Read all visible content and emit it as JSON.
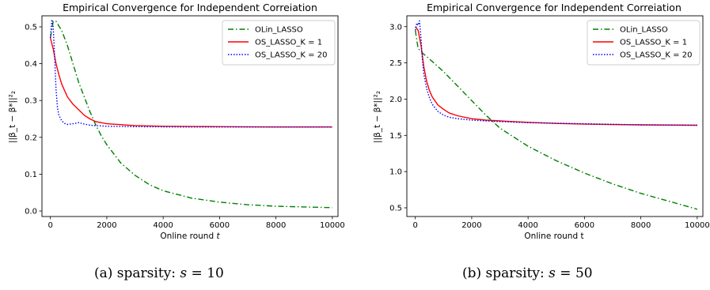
{
  "chart_data": [
    {
      "type": "line",
      "title": "Empirical Convergence for Independent Correiation",
      "xlabel": "Online round ",
      "xlabel_var": "t",
      "ylabel": "||β_t − β*||²₂",
      "xlim": [
        -300,
        10200
      ],
      "ylim": [
        -0.015,
        0.53
      ],
      "xticks": [
        0,
        2000,
        4000,
        6000,
        8000,
        10000
      ],
      "xtick_labels": [
        "0",
        "2000",
        "4000",
        "6000",
        "8000",
        "10000"
      ],
      "yticks": [
        0.0,
        0.1,
        0.2,
        0.3,
        0.4,
        0.5
      ],
      "ytick_labels": [
        "0.0",
        "0.1",
        "0.2",
        "0.3",
        "0.4",
        "0.5"
      ],
      "grid": false,
      "legend_position": "top-right",
      "caption": {
        "prefix": "(a)  sparsity: ",
        "var": "s",
        "suffix": " = 10"
      },
      "series": [
        {
          "name": "OLin_LASSO",
          "color": "#008000",
          "style": "dashdot",
          "x": [
            0,
            100,
            200,
            400,
            600,
            800,
            1000,
            1200,
            1400,
            1600,
            1800,
            2000,
            2500,
            3000,
            3500,
            4000,
            5000,
            6000,
            7000,
            8000,
            9000,
            10000
          ],
          "y": [
            0.47,
            0.515,
            0.515,
            0.49,
            0.45,
            0.4,
            0.35,
            0.31,
            0.27,
            0.235,
            0.205,
            0.18,
            0.13,
            0.097,
            0.072,
            0.055,
            0.035,
            0.024,
            0.017,
            0.013,
            0.011,
            0.009
          ]
        },
        {
          "name": "OS_LASSO_K = 1",
          "color": "#ff0000",
          "style": "solid",
          "x": [
            0,
            100,
            200,
            300,
            400,
            600,
            800,
            1000,
            1200,
            1400,
            1600,
            2000,
            3000,
            4000,
            6000,
            8000,
            10000
          ],
          "y": [
            0.47,
            0.44,
            0.4,
            0.37,
            0.345,
            0.31,
            0.29,
            0.275,
            0.26,
            0.25,
            0.243,
            0.237,
            0.232,
            0.23,
            0.229,
            0.228,
            0.228
          ]
        },
        {
          "name": "OS_LASSO_K = 20",
          "color": "#0000ff",
          "style": "dotted",
          "x": [
            0,
            50,
            100,
            150,
            200,
            250,
            300,
            400,
            500,
            600,
            800,
            1000,
            1200,
            1400,
            1600,
            2000,
            3000,
            5000,
            10000
          ],
          "y": [
            0.47,
            0.52,
            0.5,
            0.42,
            0.33,
            0.28,
            0.26,
            0.245,
            0.238,
            0.235,
            0.237,
            0.24,
            0.236,
            0.233,
            0.232,
            0.23,
            0.229,
            0.228,
            0.228
          ]
        }
      ]
    },
    {
      "type": "line",
      "title": "Empirical Convergence for Independent Correiation",
      "xlabel": "Online round t",
      "ylabel": "||β_t − β*||²₂",
      "xlim": [
        -300,
        10200
      ],
      "ylim": [
        0.38,
        3.15
      ],
      "xticks": [
        0,
        2000,
        4000,
        6000,
        8000,
        10000
      ],
      "xtick_labels": [
        "0",
        "2000",
        "4000",
        "6000",
        "8000",
        "10000"
      ],
      "yticks": [
        0.5,
        1.0,
        1.5,
        2.0,
        2.5,
        3.0
      ],
      "ytick_labels": [
        "0.5",
        "1.0",
        "1.5",
        "2.0",
        "2.5",
        "3.0"
      ],
      "grid": false,
      "legend_position": "top-right",
      "caption": {
        "prefix": "(b)  sparsity: ",
        "var": "s",
        "suffix": " = 50"
      },
      "series": [
        {
          "name": "OLin_LASSO",
          "color": "#008000",
          "style": "dashdot",
          "x": [
            0,
            100,
            300,
            600,
            1000,
            1500,
            2000,
            2500,
            3000,
            4000,
            5000,
            6000,
            7000,
            8000,
            9000,
            10000
          ],
          "y": [
            2.95,
            2.7,
            2.62,
            2.52,
            2.38,
            2.18,
            1.98,
            1.78,
            1.6,
            1.35,
            1.15,
            0.98,
            0.83,
            0.7,
            0.59,
            0.48
          ]
        },
        {
          "name": "OS_LASSO_K = 1",
          "color": "#ff0000",
          "style": "solid",
          "x": [
            0,
            100,
            200,
            300,
            400,
            500,
            600,
            800,
            1000,
            1200,
            1500,
            2000,
            2500,
            3000,
            4000,
            5000,
            6000,
            8000,
            10000
          ],
          "y": [
            3.0,
            2.95,
            2.75,
            2.45,
            2.25,
            2.12,
            2.03,
            1.92,
            1.86,
            1.81,
            1.77,
            1.73,
            1.71,
            1.7,
            1.68,
            1.665,
            1.655,
            1.645,
            1.64
          ]
        },
        {
          "name": "OS_LASSO_K = 20",
          "color": "#0000ff",
          "style": "dotted",
          "x": [
            0,
            50,
            100,
            150,
            200,
            250,
            300,
            400,
            500,
            600,
            800,
            1000,
            1200,
            1500,
            2000,
            2500,
            3000,
            4000,
            6000,
            8000,
            10000
          ],
          "y": [
            2.95,
            3.05,
            3.02,
            3.08,
            2.85,
            2.55,
            2.35,
            2.15,
            2.02,
            1.93,
            1.83,
            1.78,
            1.75,
            1.73,
            1.71,
            1.7,
            1.69,
            1.675,
            1.66,
            1.645,
            1.64
          ]
        }
      ]
    }
  ]
}
